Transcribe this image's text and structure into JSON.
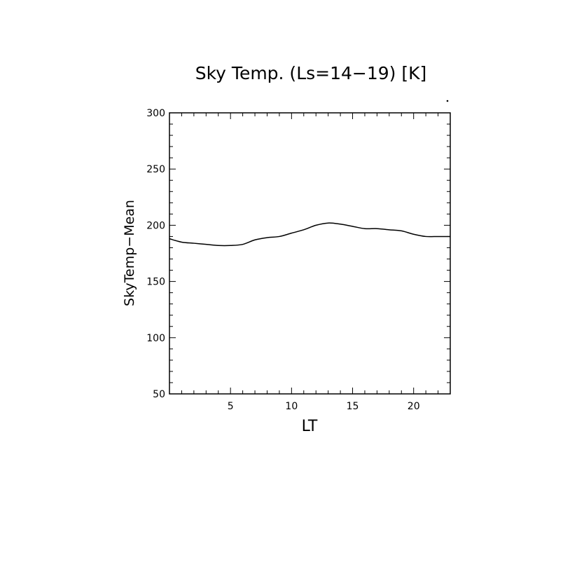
{
  "chart_data": {
    "type": "line",
    "title": "Sky Temp. (Ls=14−19) [K]",
    "xlabel": "LT",
    "ylabel": "SkyTemp−Mean",
    "xlim": [
      0,
      23
    ],
    "ylim": [
      50,
      300
    ],
    "xticks": [
      5,
      10,
      15,
      20
    ],
    "yticks": [
      50,
      100,
      150,
      200,
      250,
      300
    ],
    "grid": false,
    "series": [
      {
        "x": [
          0,
          1,
          2,
          3,
          4,
          5,
          6,
          7,
          8,
          9,
          10,
          11,
          12,
          13,
          14,
          15,
          16,
          17,
          18,
          19,
          20,
          21,
          22,
          23
        ],
        "y": [
          188,
          185,
          184,
          183,
          182,
          182,
          183,
          187,
          189,
          190,
          193,
          196,
          200,
          202,
          201,
          199,
          197,
          197,
          196,
          195,
          192,
          190,
          190,
          190
        ]
      }
    ]
  }
}
